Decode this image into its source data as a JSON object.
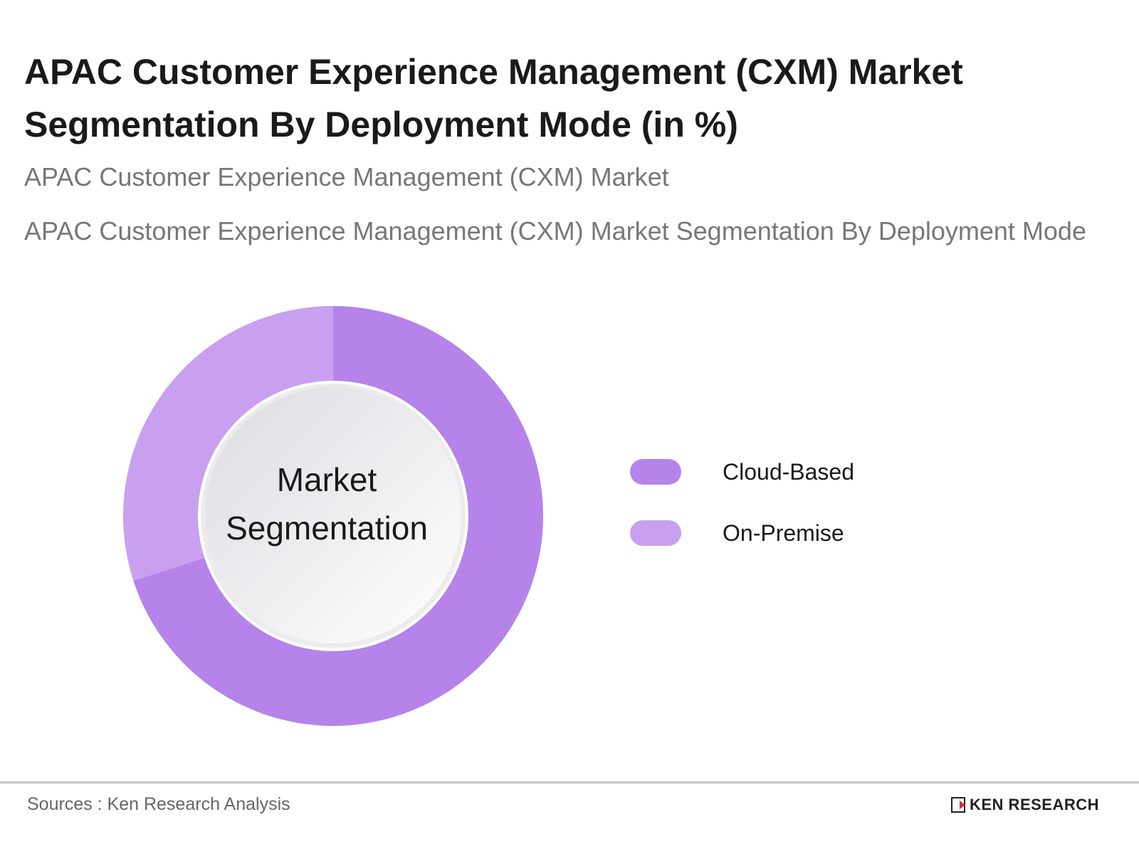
{
  "header": {
    "title": "APAC Customer Experience Management (CXM) Market Segmentation By Deployment Mode (in %)",
    "subtitle": "APAC Customer Experience Management (CXM) Market",
    "description": "APAC Customer Experience Management (CXM) Market Segmentation By Deployment Mode"
  },
  "chart_data": {
    "type": "pie",
    "variant": "donut",
    "center_label": "Market Segmentation",
    "categories": [
      "Cloud-Based",
      "On-Premise"
    ],
    "values": [
      70,
      30
    ],
    "colors": [
      "#b583ea",
      "#c8a0ef"
    ],
    "legend_position": "right"
  },
  "footer": {
    "source": "Sources : Ken Research Analysis",
    "logo_text": "KEN RESEARCH"
  }
}
